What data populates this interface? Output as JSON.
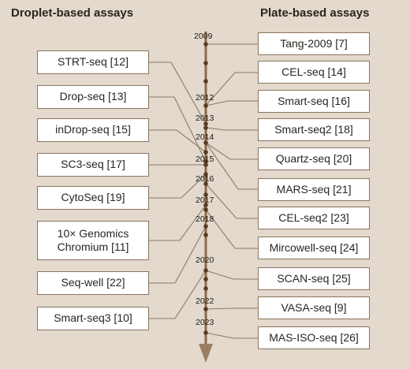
{
  "headings": {
    "left": "Droplet-based assays",
    "right": "Plate-based assays"
  },
  "years": [
    "2009",
    "2012",
    "2013",
    "2014",
    "2015",
    "2016",
    "2017",
    "2018",
    "2020",
    "2022",
    "2023"
  ],
  "droplet_assays": [
    {
      "label": "STRT-seq [12]"
    },
    {
      "label": "Drop-seq [13]"
    },
    {
      "label": "inDrop-seq [15]"
    },
    {
      "label": "SC3-seq [17]"
    },
    {
      "label": "CytoSeq [19]"
    },
    {
      "label": "10× Genomics Chromium [11]"
    },
    {
      "label": "Seq-well [22]"
    },
    {
      "label": "Smart-seq3 [10]"
    }
  ],
  "plate_assays": [
    {
      "label": "Tang-2009 [7]"
    },
    {
      "label": "CEL-seq [14]"
    },
    {
      "label": "Smart-seq [16]"
    },
    {
      "label": "Smart-seq2 [18]"
    },
    {
      "label": "Quartz-seq [20]"
    },
    {
      "label": "MARS-seq [21]"
    },
    {
      "label": "CEL-seq2 [23]"
    },
    {
      "label": "Mircowell-seq [24]"
    },
    {
      "label": "SCAN-seq [25]"
    },
    {
      "label": "VASA-seq [9]"
    },
    {
      "label": "MAS-ISO-seq [26]"
    }
  ],
  "colors": {
    "background": "#e3d9cd",
    "timeline": "#8a6a4e",
    "connector": "#8c7a68",
    "dot": "#5a3a22",
    "box_border": "#8a7460"
  }
}
